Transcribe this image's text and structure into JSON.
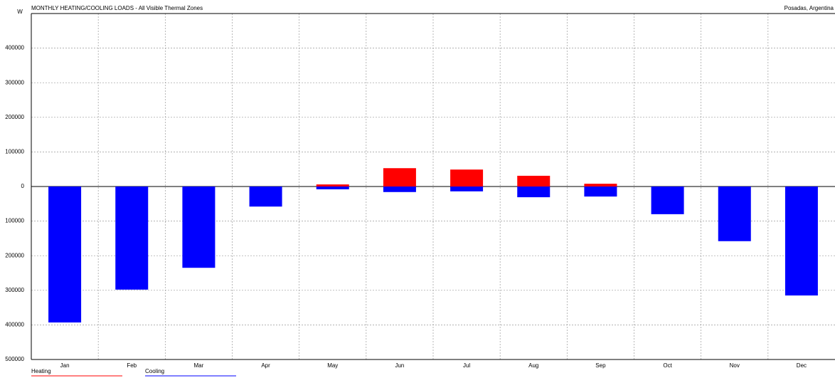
{
  "chart_data": {
    "type": "bar",
    "title": "MONTHLY HEATING/COOLING LOADS - All Visible Thermal Zones",
    "location": "Posadas, Argentina",
    "y_label": "W",
    "categories": [
      "Jan",
      "Feb",
      "Mar",
      "Apr",
      "May",
      "Jun",
      "Jul",
      "Aug",
      "Sep",
      "Oct",
      "Nov",
      "Dec"
    ],
    "series": [
      {
        "name": "Heating",
        "color": "#ff0000",
        "values": [
          0,
          0,
          0,
          0,
          6000,
          53000,
          49000,
          31000,
          8000,
          0,
          0,
          0
        ]
      },
      {
        "name": "Cooling",
        "color": "#0000ff",
        "values": [
          -393000,
          -298000,
          -235000,
          -58000,
          -8000,
          -16000,
          -14000,
          -31000,
          -29000,
          -80000,
          -158000,
          -315000
        ]
      }
    ],
    "ylim": [
      -500000,
      500000
    ],
    "yticks": [
      {
        "value": 400000,
        "label": "400000"
      },
      {
        "value": 300000,
        "label": "300000"
      },
      {
        "value": 200000,
        "label": "200000"
      },
      {
        "value": 100000,
        "label": "100000"
      },
      0,
      {
        "value": -100000,
        "label": "100000"
      },
      {
        "value": -200000,
        "label": "200000"
      },
      {
        "value": -300000,
        "label": "300000"
      },
      {
        "value": -400000,
        "label": "400000"
      },
      {
        "value": -500000,
        "label": "500000"
      }
    ],
    "grid": true
  }
}
